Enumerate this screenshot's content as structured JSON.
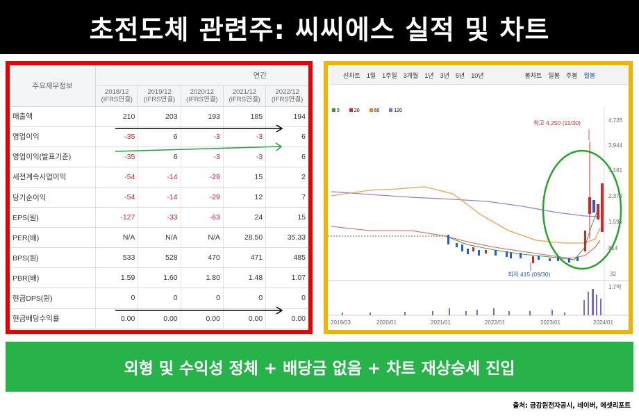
{
  "title": "초전도체 관련주: 씨씨에스 실적 및 차트",
  "table": {
    "header_label": "주요재무정보",
    "header_group": "연간",
    "columns": [
      "2018/12\n(IFRS연결)",
      "2019/12\n(IFRS연결)",
      "2020/12\n(IFRS연결)",
      "2021/12\n(IFRS연결)",
      "2022/12\n(IFRS연결)"
    ],
    "col_years": [
      "2018/12",
      "2019/12",
      "2020/12",
      "2021/12",
      "2022/12"
    ],
    "col_sub": "(IFRS연결)",
    "rows": [
      {
        "label": "매출액",
        "values": [
          "210",
          "203",
          "193",
          "185",
          "194"
        ]
      },
      {
        "label": "영업이익",
        "values": [
          "-35",
          "6",
          "-3",
          "-3",
          "6"
        ]
      },
      {
        "label": "영업이익(발표기준)",
        "values": [
          "-35",
          "6",
          "-3",
          "-3",
          "6"
        ]
      },
      {
        "label": "세전계속사업이익",
        "values": [
          "-54",
          "-14",
          "-29",
          "15",
          "2"
        ]
      },
      {
        "label": "당기순이익",
        "values": [
          "-54",
          "-14",
          "-29",
          "12",
          "7"
        ]
      },
      {
        "label": "EPS(원)",
        "values": [
          "-127",
          "-33",
          "-63",
          "24",
          "15"
        ]
      },
      {
        "label": "PER(배)",
        "values": [
          "N/A",
          "N/A",
          "N/A",
          "28.50",
          "35.33"
        ]
      },
      {
        "label": "BPS(원)",
        "values": [
          "533",
          "528",
          "470",
          "471",
          "485"
        ]
      },
      {
        "label": "PBR(배)",
        "values": [
          "1.59",
          "1.60",
          "1.80",
          "1.48",
          "1.07"
        ]
      },
      {
        "label": "현금DPS(원)",
        "values": [
          "0",
          "0",
          "0",
          "0",
          "0"
        ]
      },
      {
        "label": "현금배당수익률",
        "values": [
          "0.00",
          "0.00",
          "0.00",
          "0.00",
          "0.00"
        ]
      }
    ]
  },
  "chart": {
    "toolbar_left": [
      "선차트",
      "1일",
      "1주일",
      "3개월",
      "1년",
      "3년",
      "5년",
      "10년"
    ],
    "toolbar_right": [
      "봉차트",
      "일봉",
      "주봉",
      "월봉"
    ],
    "legend": [
      {
        "label": "5",
        "color": "#2ca02c"
      },
      {
        "label": "20",
        "color": "#d62728"
      },
      {
        "label": "60",
        "color": "#ff7f0e"
      },
      {
        "label": "120",
        "color": "#9467bd"
      }
    ],
    "high_label": "최고 4,250 (11/30)",
    "low_label": "최저 415 (09/30)",
    "y_ticks": [
      "4,726",
      "3,944",
      "3,161",
      "2,379",
      "1,596",
      "814",
      "32"
    ],
    "volume_label": "1.7억",
    "x_ticks": [
      "2019/03",
      "2020/01",
      "2021/01",
      "2022/01",
      "2023/01",
      "2024/01"
    ]
  },
  "banner": "외형 및 수익성 정체 + 배당금 없음 + 차트 재상승세 진입",
  "source": "출처: 금감원전자공시, 네이버, 에셋리포트"
}
